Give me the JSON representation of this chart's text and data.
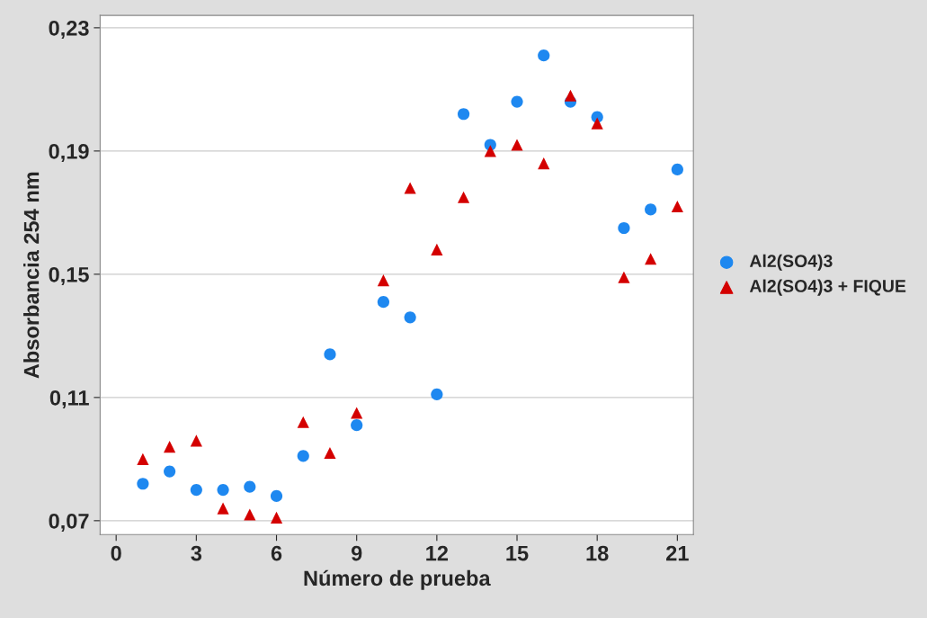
{
  "chart_data": {
    "type": "scatter",
    "xlabel": "Número de prueba",
    "ylabel": "Absorbancia 254 nm",
    "x": [
      1,
      2,
      3,
      4,
      5,
      6,
      7,
      8,
      9,
      10,
      11,
      12,
      13,
      14,
      15,
      16,
      17,
      18,
      19,
      20,
      21
    ],
    "series": [
      {
        "name": "Al2(SO4)3",
        "color": "#1e88f0",
        "marker": "circle",
        "values": [
          0.082,
          0.086,
          0.08,
          0.08,
          0.081,
          0.078,
          0.091,
          0.124,
          0.101,
          0.141,
          0.136,
          0.111,
          0.202,
          0.192,
          0.206,
          0.221,
          0.206,
          0.201,
          0.165,
          0.171,
          0.184
        ]
      },
      {
        "name": "Al2(SO4)3 + FIQUE",
        "color": "#d40000",
        "marker": "triangle",
        "values": [
          0.09,
          0.094,
          0.096,
          0.074,
          0.072,
          0.071,
          0.102,
          0.092,
          0.105,
          0.148,
          0.178,
          0.158,
          0.175,
          0.19,
          0.192,
          0.186,
          0.208,
          0.199,
          0.149,
          0.155,
          0.172
        ]
      }
    ],
    "xlim": [
      -0.6,
      21.6
    ],
    "xticks": [
      0,
      3,
      6,
      9,
      12,
      15,
      18,
      21
    ],
    "ylim": [
      0.0655,
      0.234
    ],
    "yticks": [
      {
        "value": 0.07,
        "label": "0,07"
      },
      {
        "value": 0.11,
        "label": "0,11"
      },
      {
        "value": 0.15,
        "label": "0,15"
      },
      {
        "value": 0.19,
        "label": "0,19"
      },
      {
        "value": 0.23,
        "label": "0,23"
      }
    ],
    "grid": "y",
    "legend": "right"
  }
}
